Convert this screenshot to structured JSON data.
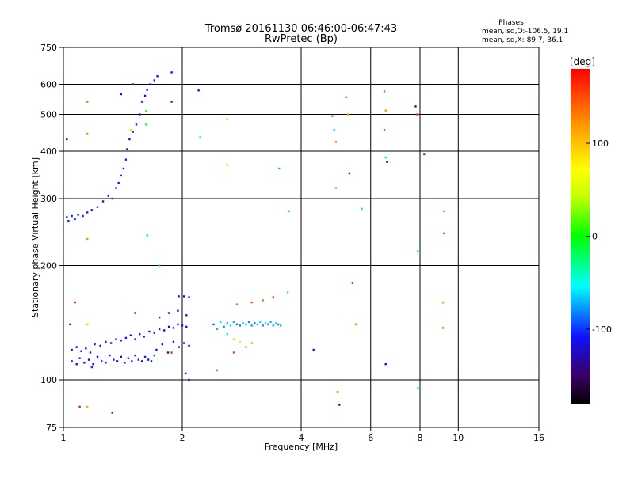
{
  "chart_data": {
    "type": "scatter",
    "title": "Tromsø 20161130 06:46:00-06:47:43",
    "subtitle": "RwPretec (Bp)",
    "xlabel": "Frequency [MHz]",
    "ylabel": "Stationary phase Virtual Height [km]",
    "x_scale": "log2",
    "y_scale": "log",
    "xlim": [
      1,
      16
    ],
    "ylim": [
      75,
      750
    ],
    "x_ticks": [
      1,
      2,
      4,
      6,
      8,
      10,
      16
    ],
    "x_tick_labels": [
      "1",
      "2",
      "4",
      "6",
      "8",
      "10",
      "16"
    ],
    "y_ticks": [
      75,
      100,
      200,
      300,
      400,
      500,
      600,
      750
    ],
    "y_tick_labels": [
      "75",
      "100",
      "200",
      "300",
      "400",
      "500",
      "600",
      "750"
    ],
    "grid": true,
    "phases": {
      "title": "Phases",
      "line_o": "mean, sd,O:-106.5, 19.1",
      "line_x": "mean, sd,X:  89.7, 36.1"
    },
    "colorbar": {
      "label": "[deg]",
      "range": [
        -180,
        180
      ],
      "ticks": [
        100,
        0,
        -100
      ],
      "tick_labels": [
        "100",
        "0",
        "-100"
      ],
      "colormap": "rainbow"
    },
    "series": [
      {
        "points": [
          [
            1.02,
            268,
            -110
          ],
          [
            1.03,
            262,
            -105
          ],
          [
            1.05,
            270,
            -115
          ],
          [
            1.07,
            265,
            -100
          ],
          [
            1.09,
            272,
            -108
          ],
          [
            1.12,
            270,
            -112
          ],
          [
            1.15,
            276,
            -104
          ],
          [
            1.18,
            280,
            -110
          ],
          [
            1.22,
            285,
            -98
          ],
          [
            1.26,
            295,
            -106
          ],
          [
            1.3,
            305,
            -115
          ],
          [
            1.33,
            300,
            -102
          ],
          [
            1.36,
            320,
            -108
          ],
          [
            1.38,
            330,
            -112
          ],
          [
            1.4,
            345,
            -100
          ],
          [
            1.42,
            360,
            -110
          ],
          [
            1.44,
            380,
            -105
          ],
          [
            1.45,
            405,
            -116
          ],
          [
            1.47,
            430,
            -108
          ],
          [
            1.5,
            450,
            -112
          ],
          [
            1.53,
            470,
            -100
          ],
          [
            1.56,
            500,
            -114
          ],
          [
            1.58,
            540,
            -105
          ],
          [
            1.61,
            560,
            -110
          ],
          [
            1.63,
            580,
            -108
          ],
          [
            1.66,
            600,
            -112
          ],
          [
            1.7,
            615,
            -104
          ],
          [
            1.73,
            630,
            -110
          ],
          [
            1.02,
            430,
            -110
          ],
          [
            1.4,
            565,
            -110
          ],
          [
            1.5,
            600,
            -110
          ],
          [
            1.88,
            645,
            -110
          ],
          [
            1.88,
            540,
            -110
          ],
          [
            1.05,
            112,
            -108
          ],
          [
            1.08,
            110,
            -112
          ],
          [
            1.1,
            114,
            -104
          ],
          [
            1.13,
            111,
            -110
          ],
          [
            1.16,
            113,
            -115
          ],
          [
            1.19,
            110,
            -106
          ],
          [
            1.22,
            115,
            -110
          ],
          [
            1.25,
            112,
            -100
          ],
          [
            1.28,
            111,
            -112
          ],
          [
            1.31,
            116,
            -108
          ],
          [
            1.34,
            113,
            -110
          ],
          [
            1.37,
            112,
            -105
          ],
          [
            1.4,
            115,
            -114
          ],
          [
            1.43,
            111,
            -108
          ],
          [
            1.46,
            114,
            -110
          ],
          [
            1.49,
            112,
            -102
          ],
          [
            1.52,
            116,
            -112
          ],
          [
            1.55,
            113,
            -108
          ],
          [
            1.58,
            112,
            -110
          ],
          [
            1.61,
            115,
            -106
          ],
          [
            1.64,
            113,
            -110
          ],
          [
            1.67,
            112,
            -112
          ],
          [
            1.7,
            116,
            -104
          ],
          [
            1.05,
            120,
            -110
          ],
          [
            1.08,
            122,
            -108
          ],
          [
            1.11,
            119,
            -112
          ],
          [
            1.14,
            121,
            -104
          ],
          [
            1.17,
            118,
            -110
          ],
          [
            1.2,
            124,
            -106
          ],
          [
            1.24,
            123,
            -112
          ],
          [
            1.28,
            126,
            -108
          ],
          [
            1.32,
            125,
            -110
          ],
          [
            1.36,
            128,
            -104
          ],
          [
            1.4,
            127,
            -112
          ],
          [
            1.44,
            129,
            -108
          ],
          [
            1.48,
            131,
            -110
          ],
          [
            1.52,
            128,
            -104
          ],
          [
            1.56,
            132,
            -112
          ],
          [
            1.6,
            130,
            -108
          ],
          [
            1.65,
            134,
            -110
          ],
          [
            1.7,
            133,
            -106
          ],
          [
            1.75,
            136,
            -112
          ],
          [
            1.8,
            135,
            -108
          ],
          [
            1.85,
            138,
            -110
          ],
          [
            1.9,
            137,
            -104
          ],
          [
            1.95,
            140,
            -112
          ],
          [
            2.0,
            139,
            -108
          ],
          [
            2.05,
            138,
            -110
          ],
          [
            1.72,
            120,
            -110
          ],
          [
            1.78,
            124,
            -108
          ],
          [
            1.84,
            118,
            -112
          ],
          [
            1.9,
            126,
            -104
          ],
          [
            1.96,
            122,
            -110
          ],
          [
            2.02,
            125,
            -106
          ],
          [
            2.08,
            123,
            -112
          ],
          [
            1.75,
            146,
            -110
          ],
          [
            1.85,
            150,
            -108
          ],
          [
            1.95,
            152,
            -112
          ],
          [
            2.05,
            148,
            -104
          ],
          [
            1.96,
            166,
            -110
          ],
          [
            2.02,
            166,
            -108
          ],
          [
            2.08,
            165,
            -112
          ],
          [
            2.04,
            104,
            -110
          ],
          [
            2.08,
            100,
            -115
          ],
          [
            1.04,
            140,
            -108
          ],
          [
            1.07,
            160,
            170
          ],
          [
            1.15,
            140,
            100
          ],
          [
            1.18,
            108,
            -100
          ],
          [
            1.52,
            150,
            -100
          ],
          [
            1.88,
            118,
            160
          ],
          [
            2.4,
            140,
            -90
          ],
          [
            2.45,
            136,
            -70
          ],
          [
            2.5,
            142,
            -60
          ],
          [
            2.55,
            138,
            -80
          ],
          [
            2.6,
            141,
            -75
          ],
          [
            2.65,
            139,
            -60
          ],
          [
            2.7,
            142,
            -70
          ],
          [
            2.75,
            140,
            -90
          ],
          [
            2.8,
            139,
            -85
          ],
          [
            2.85,
            141,
            -70
          ],
          [
            2.9,
            140,
            -65
          ],
          [
            2.95,
            142,
            -80
          ],
          [
            3.0,
            139,
            -75
          ],
          [
            3.05,
            141,
            -90
          ],
          [
            3.1,
            140,
            -70
          ],
          [
            3.15,
            142,
            -60
          ],
          [
            3.2,
            139,
            -80
          ],
          [
            3.25,
            141,
            -65
          ],
          [
            3.3,
            140,
            -85
          ],
          [
            3.35,
            142,
            -70
          ],
          [
            3.4,
            139,
            -75
          ],
          [
            3.45,
            141,
            -60
          ],
          [
            3.5,
            140,
            -80
          ],
          [
            3.55,
            139,
            -70
          ],
          [
            2.6,
            132,
            -40
          ],
          [
            2.7,
            128,
            40
          ],
          [
            2.8,
            126,
            60
          ],
          [
            2.9,
            122,
            120
          ],
          [
            3.0,
            125,
            20
          ],
          [
            2.7,
            118,
            150
          ],
          [
            2.75,
            158,
            140
          ],
          [
            3.0,
            160,
            150
          ],
          [
            3.2,
            162,
            140
          ],
          [
            3.4,
            165,
            160
          ],
          [
            3.7,
            170,
            -40
          ],
          [
            2.45,
            106,
            140
          ],
          [
            1.15,
            540,
            140
          ],
          [
            1.15,
            445,
            110
          ],
          [
            1.15,
            235,
            120
          ],
          [
            1.15,
            85,
            110
          ],
          [
            1.33,
            82,
            -110
          ],
          [
            1.1,
            85,
            170
          ],
          [
            1.62,
            510,
            0
          ],
          [
            1.48,
            455,
            40
          ],
          [
            1.63,
            240,
            -60
          ],
          [
            1.62,
            470,
            0
          ],
          [
            1.75,
            200,
            -30
          ],
          [
            2.2,
            578,
            -110
          ],
          [
            2.22,
            435,
            -60
          ],
          [
            2.6,
            485,
            100
          ],
          [
            2.6,
            368,
            30
          ],
          [
            3.52,
            360,
            -70
          ],
          [
            3.72,
            278,
            -70
          ],
          [
            4.3,
            120,
            -110
          ],
          [
            4.8,
            495,
            140
          ],
          [
            4.85,
            455,
            -60
          ],
          [
            4.9,
            423,
            130
          ],
          [
            4.9,
            320,
            -60
          ],
          [
            4.95,
            93,
            130
          ],
          [
            5.0,
            86,
            -110
          ],
          [
            5.2,
            555,
            150
          ],
          [
            5.25,
            500,
            120
          ],
          [
            5.3,
            350,
            -110
          ],
          [
            5.4,
            180,
            -110
          ],
          [
            5.5,
            140,
            130
          ],
          [
            5.7,
            282,
            -60
          ],
          [
            6.5,
            575,
            140
          ],
          [
            6.55,
            512,
            120
          ],
          [
            6.5,
            455,
            140
          ],
          [
            6.55,
            385,
            -60
          ],
          [
            6.6,
            375,
            -120
          ],
          [
            6.55,
            110,
            -120
          ],
          [
            7.8,
            525,
            -130
          ],
          [
            7.85,
            500,
            160
          ],
          [
            7.9,
            218,
            -60
          ],
          [
            7.9,
            95,
            -60
          ],
          [
            8.2,
            393,
            -140
          ],
          [
            9.2,
            278,
            120
          ],
          [
            9.2,
            243,
            140
          ],
          [
            9.15,
            160,
            120
          ],
          [
            9.15,
            137,
            130
          ]
        ]
      }
    ]
  }
}
